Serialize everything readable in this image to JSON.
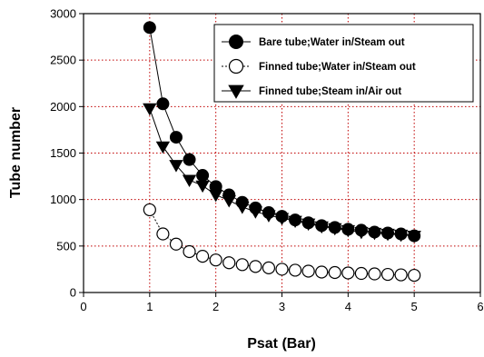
{
  "chart_data": {
    "type": "scatter",
    "xlabel": "Psat (Bar)",
    "ylabel": "Tube number",
    "xlim": [
      0,
      6
    ],
    "ylim": [
      0,
      3000
    ],
    "xticks": [
      0,
      1,
      2,
      3,
      4,
      5,
      6
    ],
    "yticks": [
      0,
      500,
      1000,
      1500,
      2000,
      2500,
      3000
    ],
    "grid": "dotted, red",
    "legend_position": "top-right",
    "series": [
      {
        "name": "Bare tube;Water in/Steam out",
        "marker": "filled-circle",
        "color": "#000000",
        "x": [
          1.0,
          1.2,
          1.4,
          1.6,
          1.8,
          2.0,
          2.2,
          2.4,
          2.6,
          2.8,
          3.0,
          3.2,
          3.4,
          3.6,
          3.8,
          4.0,
          4.2,
          4.4,
          4.6,
          4.8,
          5.0
        ],
        "values": [
          2850,
          2030,
          1670,
          1430,
          1260,
          1140,
          1050,
          970,
          910,
          860,
          820,
          780,
          750,
          720,
          700,
          680,
          670,
          650,
          640,
          630,
          610
        ]
      },
      {
        "name": "Finned tube;Water in/Steam out",
        "marker": "open-circle",
        "color": "#000000",
        "x": [
          1.0,
          1.2,
          1.4,
          1.6,
          1.8,
          2.0,
          2.2,
          2.4,
          2.6,
          2.8,
          3.0,
          3.2,
          3.4,
          3.6,
          3.8,
          4.0,
          4.2,
          4.4,
          4.6,
          4.8,
          5.0
        ],
        "values": [
          890,
          630,
          520,
          440,
          390,
          350,
          320,
          300,
          280,
          265,
          250,
          240,
          230,
          220,
          215,
          210,
          205,
          200,
          195,
          190,
          185
        ]
      },
      {
        "name": "Finned tube;Steam in/Air out",
        "marker": "filled-triangle-down",
        "color": "#000000",
        "x": [
          1.0,
          1.2,
          1.4,
          1.6,
          1.8,
          2.0,
          2.2,
          2.4,
          2.6,
          2.8,
          3.0,
          3.2,
          3.4,
          3.6,
          3.8,
          4.0,
          4.2,
          4.4,
          4.6,
          4.8,
          5.0
        ],
        "values": [
          1980,
          1570,
          1370,
          1210,
          1150,
          1050,
          990,
          920,
          870,
          830,
          800,
          770,
          740,
          710,
          690,
          670,
          650,
          640,
          630,
          620,
          610
        ]
      }
    ]
  }
}
